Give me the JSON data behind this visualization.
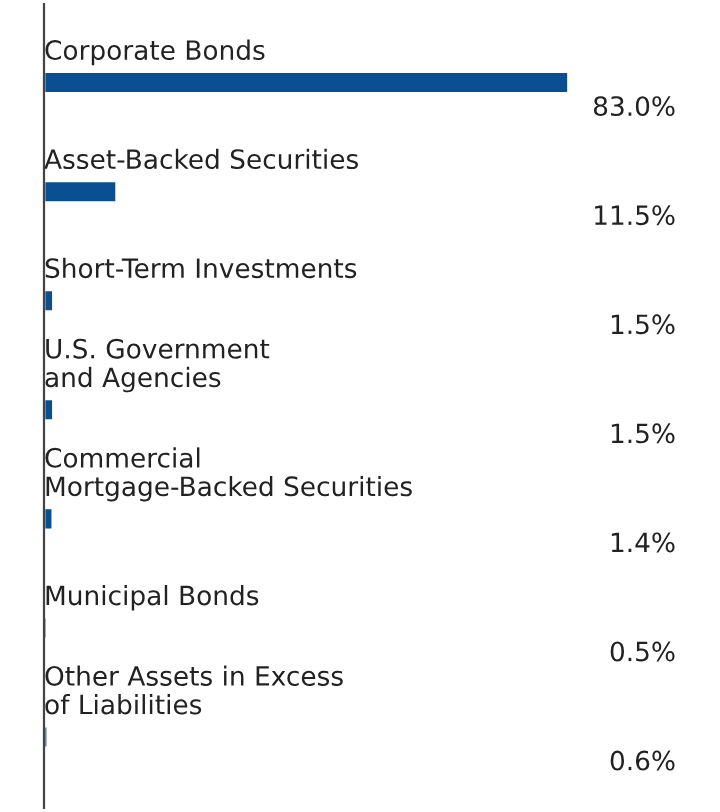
{
  "chart_data": {
    "type": "bar",
    "orientation": "horizontal",
    "categories": [
      "Corporate Bonds",
      "Asset-Backed Securities",
      "Short-Term Investments",
      "U.S. Government\nand Agencies",
      "Commercial\nMortgage-Backed Securities",
      "Municipal Bonds",
      "Other Assets in Excess\nof Liabilities"
    ],
    "values": [
      83.0,
      11.5,
      1.5,
      1.5,
      1.4,
      0.5,
      0.6
    ],
    "value_labels": [
      "83.0%",
      "11.5%",
      "1.5%",
      "1.5%",
      "1.4%",
      "0.5%",
      "0.6%"
    ],
    "color": "#0a4f92"
  }
}
